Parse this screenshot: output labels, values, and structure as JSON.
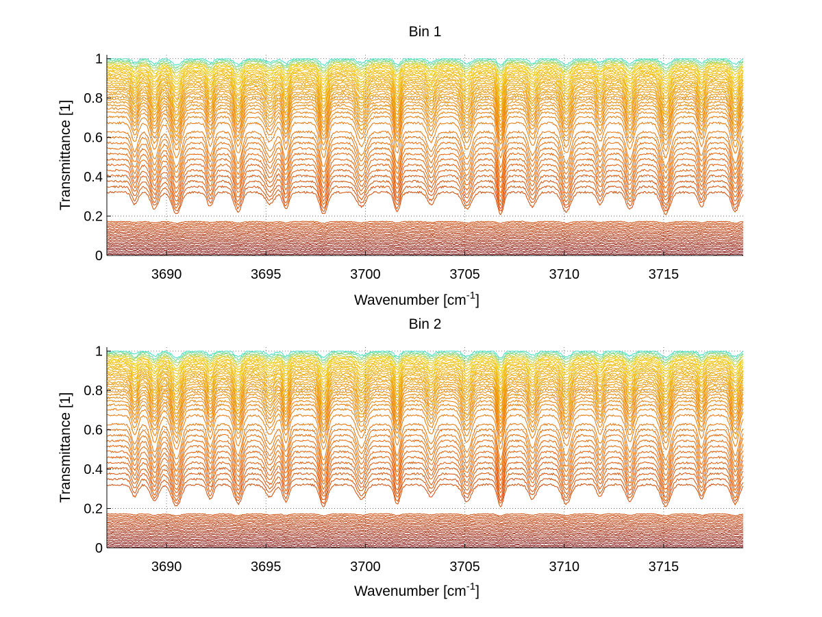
{
  "chart_data": [
    {
      "type": "line",
      "title": "Bin 1",
      "xlabel": "Wavenumber [cm",
      "xlabel_sup": "-1",
      "xlabel_suffix": "]",
      "ylabel": "Transmittance [1]",
      "xlim": [
        3687,
        3719
      ],
      "ylim": [
        0,
        1.02
      ],
      "xticks": [
        3690,
        3695,
        3700,
        3705,
        3710,
        3715
      ],
      "yticks": [
        0,
        0.2,
        0.4,
        0.6,
        0.8,
        1
      ],
      "grid": true,
      "absorption_lines_cm-1": [
        3688.4,
        3689.4,
        3690.5,
        3692.2,
        3693.6,
        3695.2,
        3696.0,
        3697.9,
        3699.8,
        3701.6,
        3703.3,
        3705.1,
        3706.8,
        3708.4,
        3710.1,
        3711.8,
        3713.3,
        3715.1,
        3716.9,
        3718.6
      ],
      "series_summary": "family of transmittance spectra ranging from ~1.0 (top, yellow-green) down to ~0.0 (bottom, dark red)",
      "series_count": 62
    },
    {
      "type": "line",
      "title": "Bin 2",
      "xlabel": "Wavenumber [cm",
      "xlabel_sup": "-1",
      "xlabel_suffix": "]",
      "ylabel": "Transmittance [1]",
      "xlim": [
        3687,
        3719
      ],
      "ylim": [
        0,
        1.02
      ],
      "xticks": [
        3690,
        3695,
        3700,
        3705,
        3710,
        3715
      ],
      "yticks": [
        0,
        0.2,
        0.4,
        0.6,
        0.8,
        1
      ],
      "grid": true,
      "absorption_lines_cm-1": [
        3688.4,
        3689.4,
        3690.5,
        3692.2,
        3693.6,
        3695.2,
        3696.0,
        3697.9,
        3699.8,
        3701.6,
        3703.3,
        3705.1,
        3706.8,
        3708.4,
        3710.1,
        3711.8,
        3713.3,
        3715.1,
        3716.9,
        3718.6
      ],
      "series_summary": "family of transmittance spectra ranging from ~1.0 (top, yellow-green) down to ~0.0 (bottom, dark red)",
      "series_count": 62
    }
  ],
  "colors": {
    "low": "#7a0000",
    "mid": "#e85a00",
    "high": "#f5c800",
    "top": "#40e0c0",
    "grid": "#555555"
  }
}
